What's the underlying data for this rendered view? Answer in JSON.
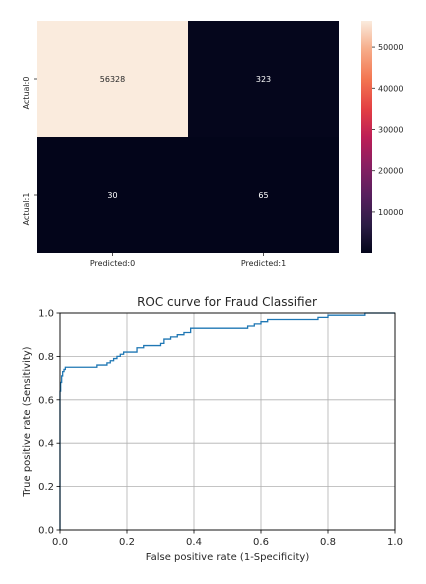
{
  "chart_data": [
    {
      "type": "heatmap",
      "row_labels": [
        "Actual:0",
        "Actual:1"
      ],
      "col_labels": [
        "Predicted:0",
        "Predicted:1"
      ],
      "values": [
        [
          56328,
          323
        ],
        [
          30,
          65
        ]
      ],
      "cell_text": [
        [
          "56328",
          "323"
        ],
        [
          "30",
          "65"
        ]
      ],
      "colorbar": {
        "min": 30,
        "max": 56328,
        "ticks": [
          10000,
          20000,
          30000,
          40000,
          50000
        ],
        "tick_labels": [
          "10000",
          "20000",
          "30000",
          "40000",
          "50000"
        ]
      }
    },
    {
      "type": "line",
      "title": "ROC curve for Fraud Classifier",
      "xlabel": "False positive rate (1-Specificity)",
      "ylabel": "True positive rate (Sensitivity)",
      "xlim": [
        0,
        1
      ],
      "ylim": [
        0,
        1
      ],
      "xticks": [
        "0.0",
        "0.2",
        "0.4",
        "0.6",
        "0.8",
        "1.0"
      ],
      "yticks": [
        "0.0",
        "0.2",
        "0.4",
        "0.6",
        "0.8",
        "1.0"
      ],
      "grid": true,
      "series": [
        {
          "color": "#1f77b4",
          "x": [
            0.0,
            0.0,
            0.002,
            0.002,
            0.005,
            0.005,
            0.008,
            0.008,
            0.012,
            0.012,
            0.016,
            0.016,
            0.11,
            0.11,
            0.14,
            0.14,
            0.15,
            0.15,
            0.16,
            0.16,
            0.17,
            0.17,
            0.18,
            0.18,
            0.19,
            0.19,
            0.23,
            0.23,
            0.25,
            0.25,
            0.3,
            0.3,
            0.31,
            0.31,
            0.33,
            0.33,
            0.35,
            0.35,
            0.37,
            0.37,
            0.39,
            0.39,
            0.56,
            0.56,
            0.58,
            0.58,
            0.6,
            0.6,
            0.62,
            0.62,
            0.77,
            0.77,
            0.8,
            0.8,
            0.91,
            0.91,
            1.0
          ],
          "y": [
            0.0,
            0.64,
            0.64,
            0.68,
            0.68,
            0.71,
            0.71,
            0.73,
            0.73,
            0.74,
            0.74,
            0.75,
            0.75,
            0.76,
            0.76,
            0.77,
            0.77,
            0.78,
            0.78,
            0.79,
            0.79,
            0.8,
            0.8,
            0.81,
            0.81,
            0.82,
            0.82,
            0.84,
            0.84,
            0.85,
            0.85,
            0.86,
            0.86,
            0.88,
            0.88,
            0.89,
            0.89,
            0.9,
            0.9,
            0.91,
            0.91,
            0.93,
            0.93,
            0.94,
            0.94,
            0.95,
            0.95,
            0.96,
            0.96,
            0.97,
            0.97,
            0.98,
            0.98,
            0.99,
            0.99,
            1.0,
            1.0
          ]
        }
      ]
    }
  ]
}
